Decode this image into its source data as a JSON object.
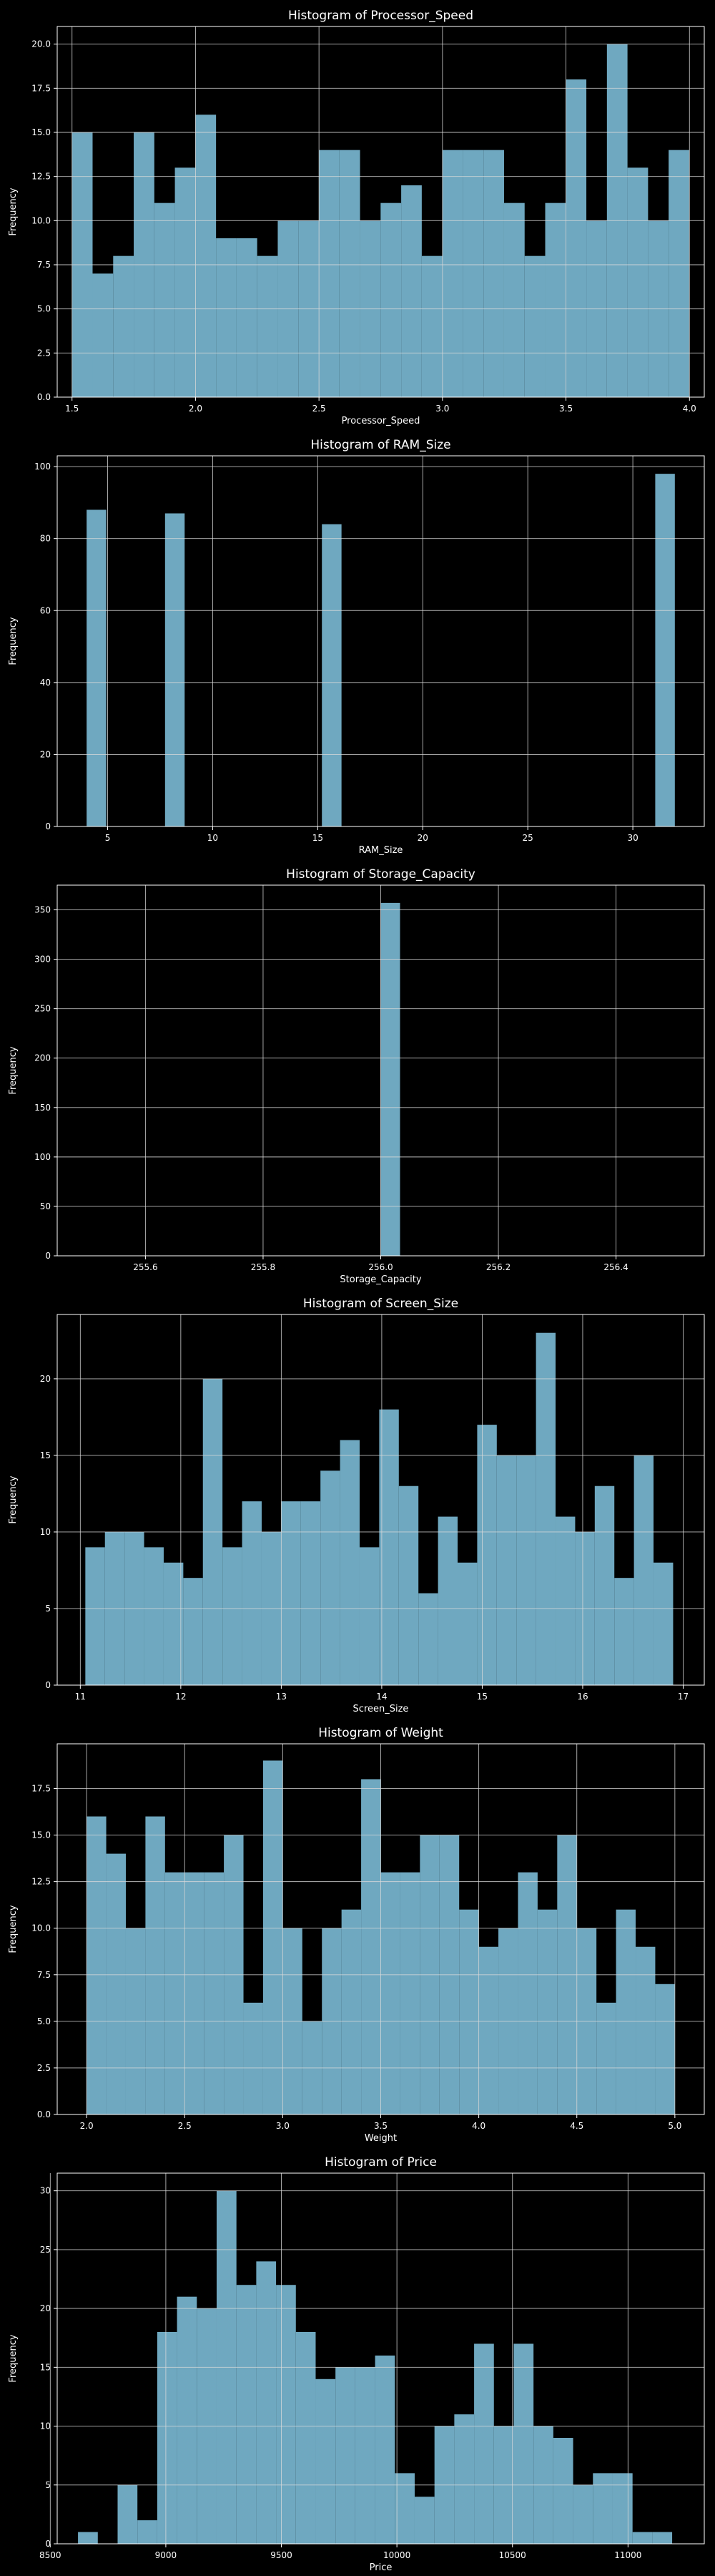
{
  "figure": {
    "background": "#000000",
    "bar_color": "#6fa8c0",
    "grid_color": "#d9d9d9",
    "text_color": "#ffffff"
  },
  "chart_data": [
    {
      "type": "bar",
      "title": "Histogram of Processor_Speed",
      "xlabel": "Processor_Speed",
      "ylabel": "Frequency",
      "xlim": [
        1.44,
        4.06
      ],
      "ylim": [
        0,
        21
      ],
      "x_ticks": [
        1.5,
        2.0,
        2.5,
        3.0,
        3.5,
        4.0
      ],
      "x_tick_labels": [
        "1.5",
        "2.0",
        "2.5",
        "3.0",
        "3.5",
        "4.0"
      ],
      "y_ticks": [
        0,
        2.5,
        5,
        7.5,
        10,
        12.5,
        15,
        17.5,
        20
      ],
      "y_tick_labels": [
        "0.0",
        "2.5",
        "5.0",
        "7.5",
        "10.0",
        "12.5",
        "15.0",
        "17.5",
        "20.0"
      ],
      "bin_start": 1.5,
      "bin_width": 0.0833,
      "values": [
        15,
        7,
        8,
        15,
        11,
        13,
        16,
        9,
        9,
        8,
        10,
        10,
        14,
        14,
        10,
        11,
        12,
        8,
        14,
        14,
        14,
        11,
        8,
        11,
        18,
        10,
        20,
        13,
        10,
        14
      ]
    },
    {
      "type": "bar",
      "title": "Histogram of RAM_Size",
      "xlabel": "RAM_Size",
      "ylabel": "Frequency",
      "xlim": [
        2.6,
        33.4
      ],
      "ylim": [
        0,
        103
      ],
      "x_ticks": [
        5,
        10,
        15,
        20,
        25,
        30
      ],
      "x_tick_labels": [
        "5",
        "10",
        "15",
        "20",
        "25",
        "30"
      ],
      "y_ticks": [
        0,
        20,
        40,
        60,
        80,
        100
      ],
      "y_tick_labels": [
        "0",
        "20",
        "40",
        "60",
        "80",
        "100"
      ],
      "bin_start": 4,
      "bin_width": 0.9333,
      "values": [
        88,
        0,
        0,
        0,
        87,
        0,
        0,
        0,
        0,
        0,
        0,
        0,
        84,
        0,
        0,
        0,
        0,
        0,
        0,
        0,
        0,
        0,
        0,
        0,
        0,
        0,
        0,
        0,
        0,
        98
      ]
    },
    {
      "type": "bar",
      "title": "Histogram of Storage_Capacity",
      "xlabel": "Storage_Capacity",
      "ylabel": "Frequency",
      "xlim": [
        255.45,
        256.55
      ],
      "ylim": [
        0,
        375
      ],
      "x_ticks": [
        255.6,
        255.8,
        256.0,
        256.2,
        256.4
      ],
      "x_tick_labels": [
        "255.6",
        "255.8",
        "256.0",
        "256.2",
        "256.4"
      ],
      "y_ticks": [
        0,
        50,
        100,
        150,
        200,
        250,
        300,
        350
      ],
      "y_tick_labels": [
        "0",
        "50",
        "100",
        "150",
        "200",
        "250",
        "300",
        "350"
      ],
      "bin_start": 255.5,
      "bin_width": 0.0333,
      "values": [
        0,
        0,
        0,
        0,
        0,
        0,
        0,
        0,
        0,
        0,
        0,
        0,
        0,
        0,
        0,
        357,
        0,
        0,
        0,
        0,
        0,
        0,
        0,
        0,
        0,
        0,
        0,
        0,
        0,
        0
      ]
    },
    {
      "type": "bar",
      "title": "Histogram of Screen_Size",
      "xlabel": "Screen_Size",
      "ylabel": "Frequency",
      "xlim": [
        10.77,
        17.21
      ],
      "ylim": [
        0,
        24.2
      ],
      "x_ticks": [
        11,
        12,
        13,
        14,
        15,
        16,
        17
      ],
      "x_tick_labels": [
        "11",
        "12",
        "13",
        "14",
        "15",
        "16",
        "17"
      ],
      "y_ticks": [
        0,
        5,
        10,
        15,
        20
      ],
      "y_tick_labels": [
        "0",
        "5",
        "10",
        "15",
        "20"
      ],
      "bin_start": 11.05,
      "bin_width": 0.195,
      "values": [
        9,
        10,
        10,
        9,
        8,
        7,
        20,
        9,
        12,
        10,
        12,
        12,
        14,
        16,
        9,
        18,
        13,
        6,
        11,
        8,
        17,
        15,
        15,
        23,
        11,
        10,
        13,
        7,
        15,
        8
      ]
    },
    {
      "type": "bar",
      "title": "Histogram of Weight",
      "xlabel": "Weight",
      "ylabel": "Frequency",
      "xlim": [
        1.85,
        5.15
      ],
      "ylim": [
        0,
        19.9
      ],
      "x_ticks": [
        2.0,
        2.5,
        3.0,
        3.5,
        4.0,
        4.5,
        5.0
      ],
      "x_tick_labels": [
        "2.0",
        "2.5",
        "3.0",
        "3.5",
        "4.0",
        "4.5",
        "5.0"
      ],
      "y_ticks": [
        0,
        2.5,
        5,
        7.5,
        10,
        12.5,
        15,
        17.5
      ],
      "y_tick_labels": [
        "0.0",
        "2.5",
        "5.0",
        "7.5",
        "10.0",
        "12.5",
        "15.0",
        "17.5"
      ],
      "bin_start": 2.0,
      "bin_width": 0.1,
      "values": [
        16,
        14,
        10,
        16,
        13,
        13,
        13,
        15,
        6,
        19,
        10,
        5,
        10,
        11,
        18,
        13,
        13,
        15,
        15,
        11,
        9,
        10,
        13,
        11,
        15,
        10,
        6,
        11,
        9,
        7
      ]
    },
    {
      "type": "bar",
      "title": "Histogram of Price",
      "xlabel": "Price",
      "ylabel": "Frequency",
      "xlim": [
        8530,
        11330
      ],
      "ylim": [
        0,
        31.5
      ],
      "x_ticks": [
        8500,
        9000,
        9500,
        10000,
        10500,
        11000
      ],
      "x_tick_labels": [
        "8500",
        "9000",
        "9500",
        "10000",
        "10500",
        "11000"
      ],
      "y_ticks": [
        0,
        5,
        10,
        15,
        20,
        25,
        30
      ],
      "y_tick_labels": [
        "0",
        "5",
        "10",
        "15",
        "20",
        "25",
        "30"
      ],
      "bin_start": 8620,
      "bin_width": 85.7,
      "values": [
        1,
        0,
        5,
        2,
        18,
        21,
        20,
        30,
        22,
        24,
        22,
        18,
        14,
        15,
        15,
        16,
        6,
        4,
        10,
        11,
        17,
        10,
        17,
        10,
        9,
        5,
        6,
        6,
        1,
        1
      ]
    }
  ]
}
